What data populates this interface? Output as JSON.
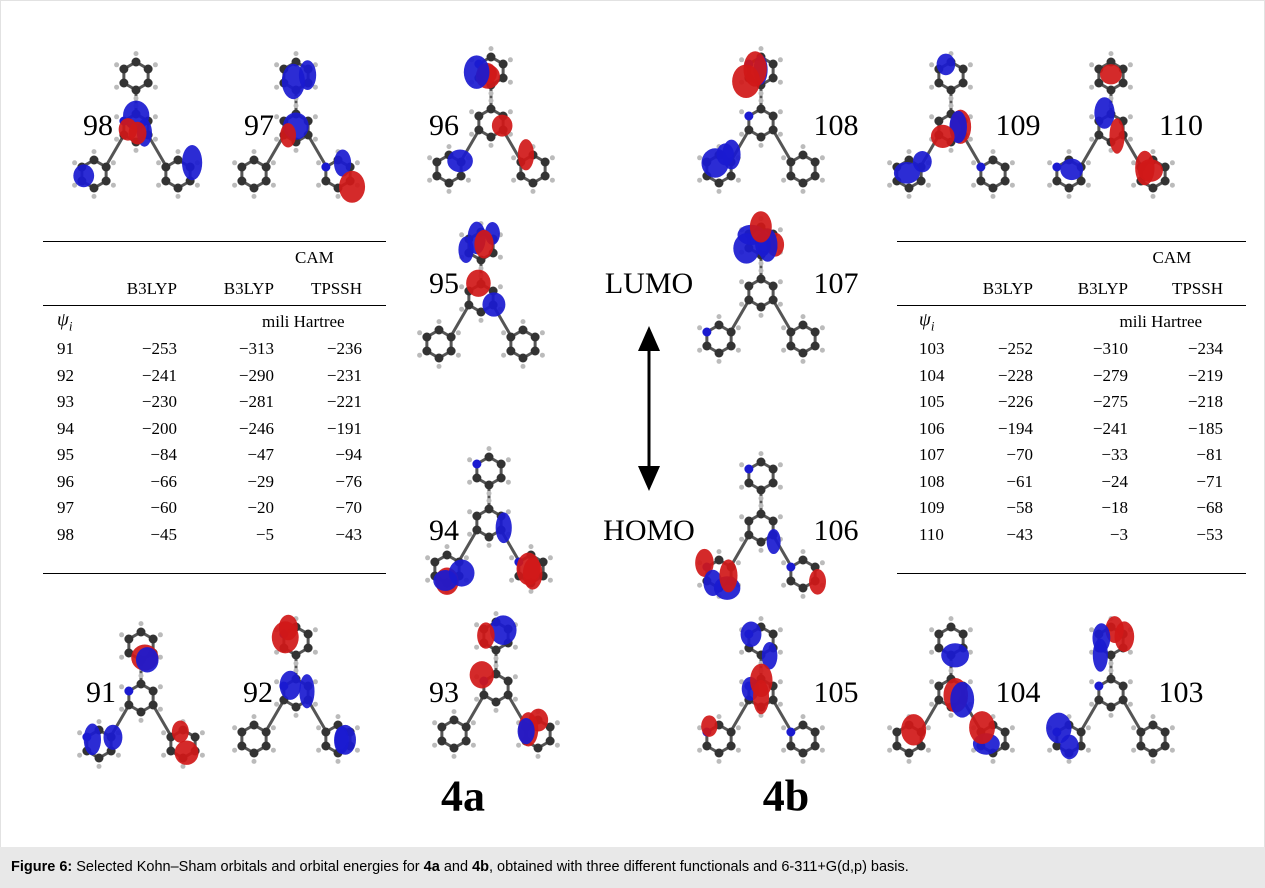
{
  "figure": {
    "orbital_labels": [
      "98",
      "97",
      "96",
      "108",
      "109",
      "110",
      "95",
      "107",
      "94",
      "106",
      "91",
      "92",
      "93",
      "105",
      "104",
      "103"
    ],
    "lumo": "LUMO",
    "homo": "HOMO",
    "compounds": [
      "4a",
      "4b"
    ],
    "tables": [
      {
        "header_top": "CAM",
        "columns": [
          "B3LYP",
          "B3LYP",
          "TPSSH"
        ],
        "psi_symbol": "ψ",
        "psi_index": "i",
        "unit": "mili Hartree",
        "rows": [
          [
            "91",
            "−253",
            "−313",
            "−236"
          ],
          [
            "92",
            "−241",
            "−290",
            "−231"
          ],
          [
            "93",
            "−230",
            "−281",
            "−221"
          ],
          [
            "94",
            "−200",
            "−246",
            "−191"
          ],
          [
            "95",
            "−84",
            "−47",
            "−94"
          ],
          [
            "96",
            "−66",
            "−29",
            "−76"
          ],
          [
            "97",
            "−60",
            "−20",
            "−70"
          ],
          [
            "98",
            "−45",
            "−5",
            "−43"
          ]
        ]
      },
      {
        "header_top": "CAM",
        "columns": [
          "B3LYP",
          "B3LYP",
          "TPSSH"
        ],
        "psi_symbol": "ψ",
        "psi_index": "i",
        "unit": "mili Hartree",
        "rows": [
          [
            "103",
            "−252",
            "−310",
            "−234"
          ],
          [
            "104",
            "−228",
            "−279",
            "−219"
          ],
          [
            "105",
            "−226",
            "−275",
            "−218"
          ],
          [
            "106",
            "−194",
            "−241",
            "−185"
          ],
          [
            "107",
            "−70",
            "−33",
            "−81"
          ],
          [
            "108",
            "−61",
            "−24",
            "−71"
          ],
          [
            "109",
            "−58",
            "−18",
            "−68"
          ],
          [
            "110",
            "−43",
            "−3",
            "−53"
          ]
        ]
      }
    ]
  },
  "caption": {
    "label": "Figure 6:",
    "text_1": " Selected Kohn–Sham orbitals and orbital energies for ",
    "bold_1": "4a",
    "text_2": " and ",
    "bold_2": "4b",
    "text_3": ", obtained with three different functionals and 6-311+G(d,p) basis."
  }
}
